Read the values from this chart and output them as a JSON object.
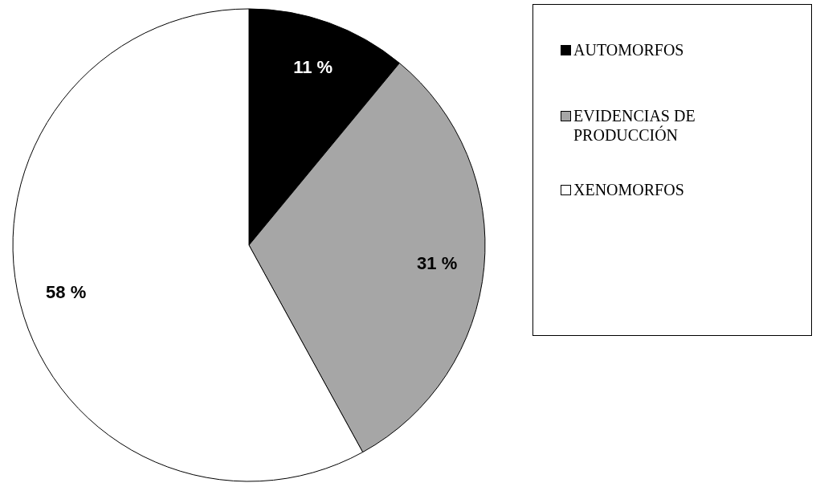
{
  "chart_data": {
    "type": "pie",
    "categories": [
      "AUTOMORFOS",
      "EVIDENCIAS DE PRODUCCIÓN",
      "XENOMORFOS"
    ],
    "values": [
      11,
      31,
      58
    ],
    "colors": [
      "#000000",
      "#a6a6a6",
      "#ffffff"
    ],
    "value_labels": [
      "11 %",
      "31 %",
      "58 %"
    ],
    "legend": "right"
  }
}
